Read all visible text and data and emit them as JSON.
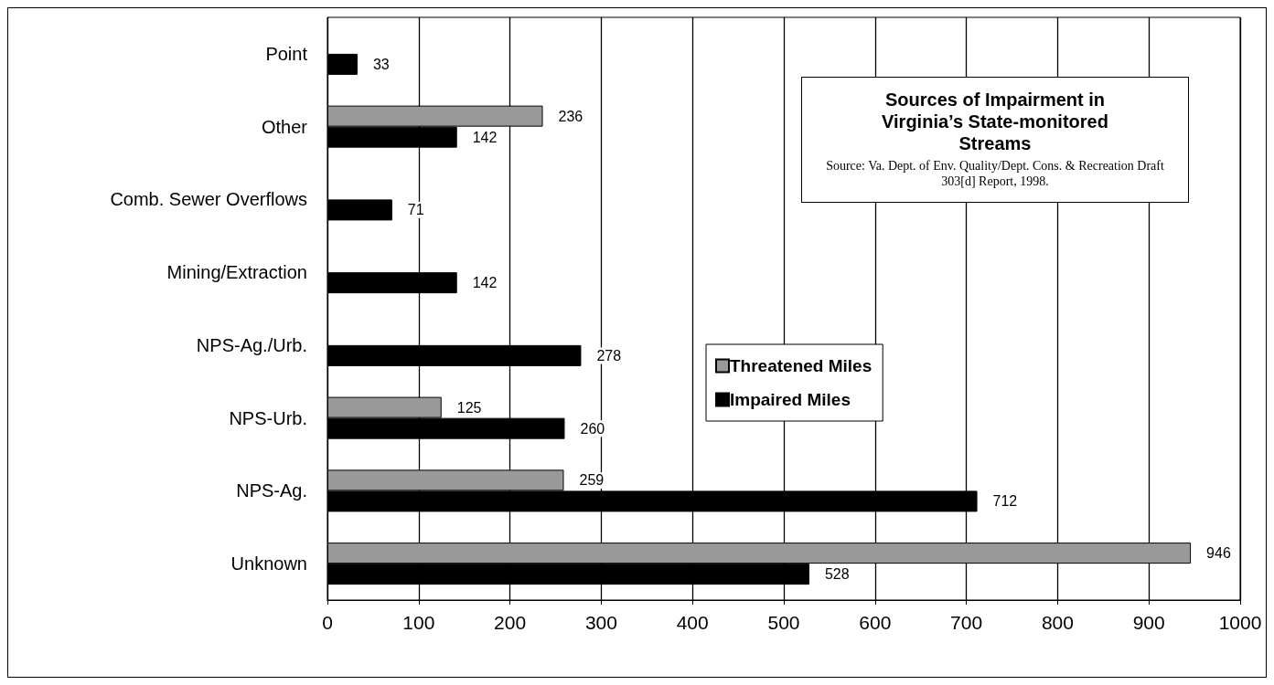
{
  "chart_data": {
    "type": "bar",
    "orientation": "horizontal",
    "title": "Sources of Impairment in Virginia’s State-monitored Streams",
    "annotations": [
      "Source: Va. Dept. of Env. Quality/Dept. Cons. & Recreation Draft 303[d] Report, 1998."
    ],
    "categories": [
      "Point",
      "Other",
      "Comb. Sewer Overflows",
      "Mining/Extraction",
      "NPS-Ag./Urb.",
      "NPS-Urb.",
      "NPS-Ag.",
      "Unknown"
    ],
    "series": [
      {
        "name": "Threatened Miles",
        "color": "#999999",
        "values": [
          null,
          236,
          null,
          null,
          null,
          125,
          259,
          946
        ]
      },
      {
        "name": "Impaired Miles",
        "color": "#000000",
        "values": [
          33,
          142,
          71,
          142,
          278,
          260,
          712,
          528
        ]
      }
    ],
    "xlim": [
      0,
      1000
    ],
    "xticks": [
      0,
      100,
      200,
      300,
      400,
      500,
      600,
      700,
      800,
      900,
      1000
    ],
    "grid": "x",
    "legend": "center",
    "data_labels": true
  }
}
